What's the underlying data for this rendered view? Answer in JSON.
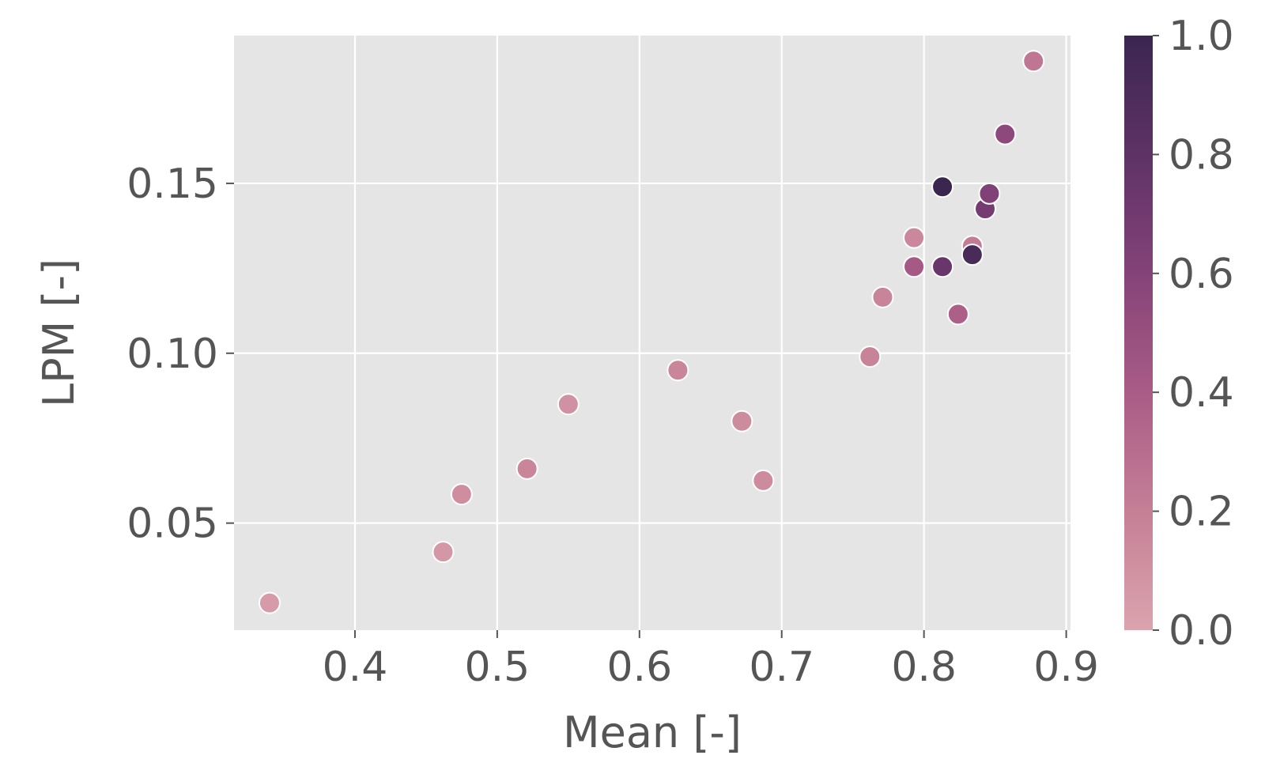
{
  "chart_data": {
    "type": "scatter",
    "title": "",
    "xlabel": "Mean [-]",
    "ylabel": "LPM [-]",
    "xlim": [
      0.315,
      0.903
    ],
    "ylim": [
      0.0185,
      0.1935
    ],
    "xticks": [
      0.4,
      0.5,
      0.6,
      0.7,
      0.8,
      0.9
    ],
    "xtick_labels": [
      "0.4",
      "0.5",
      "0.6",
      "0.7",
      "0.8",
      "0.9"
    ],
    "yticks": [
      0.05,
      0.1,
      0.15
    ],
    "ytick_labels": [
      "0.05",
      "0.10",
      "0.15"
    ],
    "grid": true,
    "background": "#e5e5e5",
    "colorbar": {
      "range": [
        0.0,
        1.0
      ],
      "ticks": [
        0.0,
        0.2,
        0.4,
        0.6,
        0.8,
        1.0
      ],
      "tick_labels": [
        "0.0",
        "0.2",
        "0.4",
        "0.6",
        "0.8",
        "1.0"
      ],
      "colors": [
        "#dba4ad",
        "#c57f96",
        "#a95c86",
        "#844378",
        "#5e3266",
        "#3b2650"
      ]
    },
    "points": [
      {
        "x": 0.34,
        "y": 0.0265,
        "c": 0.05
      },
      {
        "x": 0.462,
        "y": 0.0415,
        "c": 0.07
      },
      {
        "x": 0.475,
        "y": 0.0585,
        "c": 0.12
      },
      {
        "x": 0.521,
        "y": 0.066,
        "c": 0.16
      },
      {
        "x": 0.55,
        "y": 0.085,
        "c": 0.1
      },
      {
        "x": 0.627,
        "y": 0.095,
        "c": 0.16
      },
      {
        "x": 0.672,
        "y": 0.08,
        "c": 0.13
      },
      {
        "x": 0.687,
        "y": 0.0625,
        "c": 0.13
      },
      {
        "x": 0.762,
        "y": 0.099,
        "c": 0.18
      },
      {
        "x": 0.771,
        "y": 0.1165,
        "c": 0.17
      },
      {
        "x": 0.793,
        "y": 0.134,
        "c": 0.15
      },
      {
        "x": 0.793,
        "y": 0.1255,
        "c": 0.42
      },
      {
        "x": 0.813,
        "y": 0.1255,
        "c": 0.75
      },
      {
        "x": 0.813,
        "y": 0.149,
        "c": 1.0
      },
      {
        "x": 0.824,
        "y": 0.1115,
        "c": 0.38
      },
      {
        "x": 0.834,
        "y": 0.1315,
        "c": 0.22
      },
      {
        "x": 0.834,
        "y": 0.129,
        "c": 0.92
      },
      {
        "x": 0.843,
        "y": 0.1425,
        "c": 0.68
      },
      {
        "x": 0.846,
        "y": 0.147,
        "c": 0.62
      },
      {
        "x": 0.857,
        "y": 0.1645,
        "c": 0.55
      },
      {
        "x": 0.877,
        "y": 0.186,
        "c": 0.25
      }
    ]
  }
}
